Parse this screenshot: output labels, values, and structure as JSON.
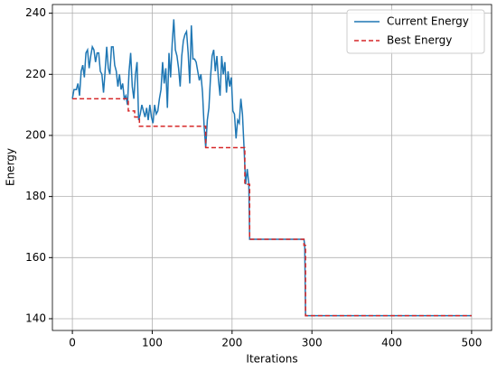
{
  "chart_data": {
    "type": "line",
    "xlabel": "Iterations",
    "ylabel": "Energy",
    "xlim": [
      -25,
      525
    ],
    "ylim": [
      136.15,
      242.85
    ],
    "xticks": [
      0,
      100,
      200,
      300,
      400,
      500
    ],
    "yticks": [
      140,
      160,
      180,
      200,
      220,
      240
    ],
    "grid": true,
    "legend": "upper right",
    "series": [
      {
        "name": "Current Energy",
        "color": "#1f77b4",
        "dash": false,
        "x": [
          0,
          2,
          5,
          7,
          9,
          11,
          13,
          15,
          17,
          19,
          21,
          23,
          25,
          27,
          29,
          31,
          33,
          35,
          37,
          39,
          41,
          43,
          45,
          47,
          49,
          51,
          53,
          55,
          57,
          59,
          61,
          63,
          65,
          67,
          69,
          71,
          73,
          75,
          77,
          79,
          81,
          83,
          85,
          87,
          89,
          91,
          93,
          95,
          97,
          99,
          101,
          103,
          105,
          107,
          109,
          111,
          113,
          115,
          117,
          119,
          121,
          123,
          125,
          127,
          129,
          131,
          133,
          135,
          137,
          139,
          141,
          143,
          145,
          147,
          149,
          151,
          153,
          155,
          157,
          159,
          161,
          163,
          165,
          167,
          169,
          171,
          173,
          175,
          177,
          179,
          181,
          183,
          185,
          187,
          189,
          191,
          193,
          195,
          197,
          199,
          201,
          203,
          205,
          207,
          209,
          211,
          213,
          215,
          217,
          219,
          221,
          222,
          290,
          291,
          292,
          500
        ],
        "values": [
          212,
          215,
          215,
          217,
          213,
          221,
          223,
          219,
          227,
          228,
          222,
          226,
          229,
          228,
          224,
          227,
          227,
          221,
          220,
          214,
          221,
          229,
          222,
          220,
          229,
          229,
          223,
          221,
          216,
          220,
          215,
          217,
          212,
          213,
          210,
          221,
          227,
          216,
          212,
          220,
          224,
          205,
          207,
          210,
          208,
          206,
          209,
          205,
          210,
          206,
          204,
          210,
          207,
          208,
          212,
          215,
          224,
          217,
          222,
          209,
          227,
          219,
          230,
          238,
          228,
          226,
          222,
          216,
          226,
          231,
          233,
          234,
          227,
          217,
          236,
          225,
          225,
          224,
          221,
          218,
          220,
          214,
          203,
          196,
          205,
          209,
          219,
          226,
          228,
          221,
          226,
          218,
          213,
          226,
          220,
          224,
          214,
          221,
          216,
          219,
          208,
          207,
          199,
          205,
          204,
          212,
          207,
          196,
          184,
          189,
          184,
          166,
          166,
          164,
          141,
          141
        ]
      },
      {
        "name": "Best Energy",
        "color": "#d62728",
        "dash": true,
        "x": [
          0,
          70,
          70,
          78,
          78,
          84,
          84,
          167,
          167,
          216,
          216,
          222,
          222,
          290,
          290,
          292,
          292,
          500
        ],
        "values": [
          212,
          212,
          208,
          208,
          206,
          206,
          203,
          203,
          196,
          196,
          184,
          184,
          166,
          166,
          164,
          164,
          141,
          141
        ]
      }
    ]
  }
}
